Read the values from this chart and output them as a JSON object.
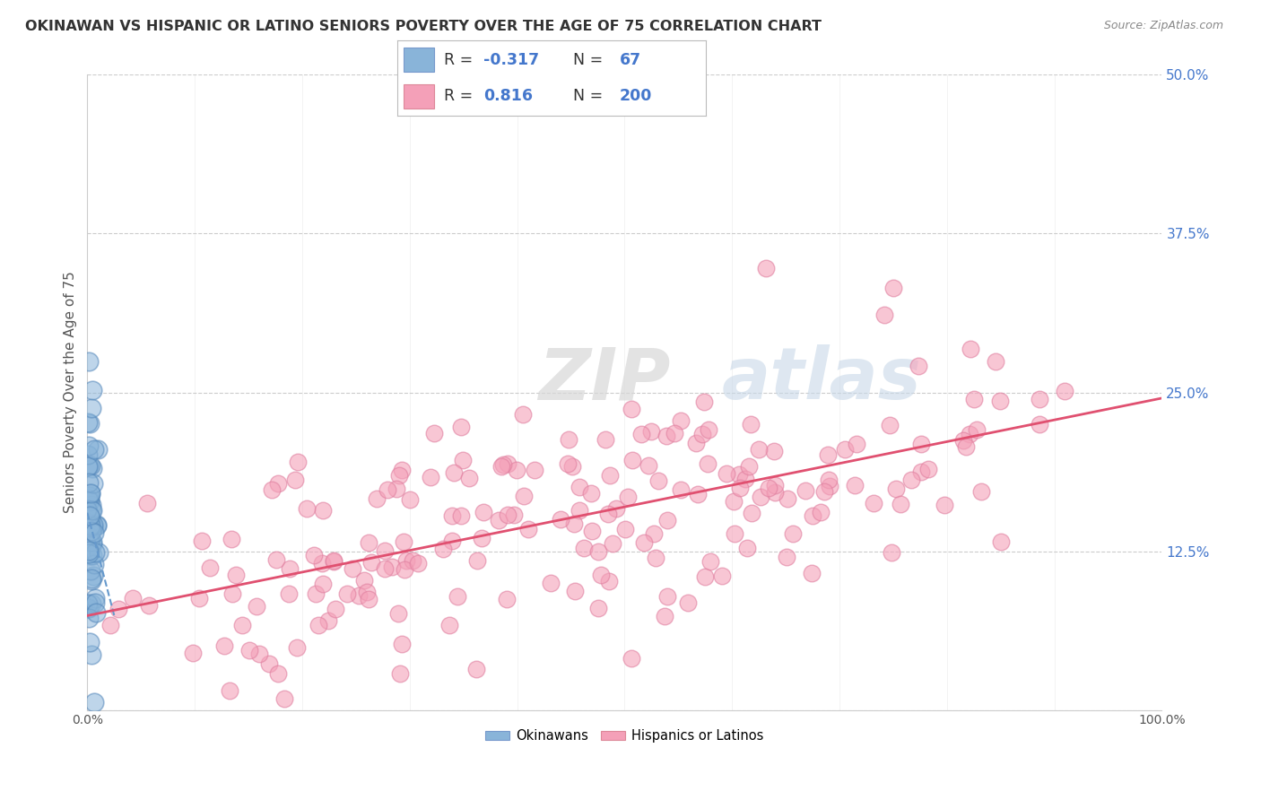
{
  "title": "OKINAWAN VS HISPANIC OR LATINO SENIORS POVERTY OVER THE AGE OF 75 CORRELATION CHART",
  "source_text": "Source: ZipAtlas.com",
  "ylabel": "Seniors Poverty Over the Age of 75",
  "xlabel": "",
  "xlim": [
    0.0,
    1.0
  ],
  "ylim": [
    0.0,
    0.5
  ],
  "yticks": [
    0.0,
    0.125,
    0.25,
    0.375,
    0.5
  ],
  "ytick_labels": [
    "",
    "12.5%",
    "25.0%",
    "37.5%",
    "50.0%"
  ],
  "xtick_labels": [
    "0.0%",
    "100.0%"
  ],
  "watermark_zip": "ZIP",
  "watermark_atlas": "atlas",
  "legend_R1": "-0.317",
  "legend_N1": "67",
  "legend_R2": "0.816",
  "legend_N2": "200",
  "okinawan_color": "#89b4d9",
  "hispanic_color": "#f4a0b8",
  "okinawan_line_color": "#6699cc",
  "hispanic_line_color": "#e05070",
  "background_color": "#ffffff",
  "grid_color": "#cccccc",
  "title_color": "#333333",
  "source_color": "#888888",
  "legend_blue_color": "#4477cc",
  "legend_label_color": "#333333",
  "okinawan_n": 67,
  "hispanic_n": 200,
  "okinawan_R": -0.317,
  "hispanic_R": 0.816
}
